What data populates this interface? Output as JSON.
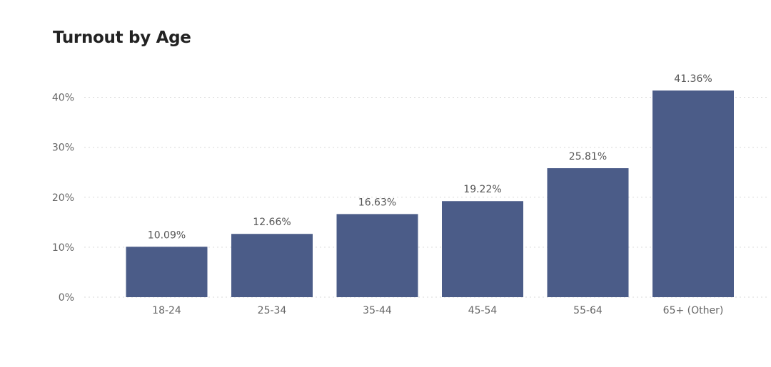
{
  "chart_data": {
    "type": "bar",
    "title": "Turnout by Age",
    "categories": [
      "18-24",
      "25-34",
      "35-44",
      "45-54",
      "55-64",
      "65+ (Other)"
    ],
    "values": [
      10.09,
      12.66,
      16.63,
      19.22,
      25.81,
      41.36
    ],
    "data_labels": [
      "10.09%",
      "12.66%",
      "16.63%",
      "19.22%",
      "25.81%",
      "41.36%"
    ],
    "yticks": [
      0,
      10,
      20,
      30,
      40
    ],
    "ytick_labels": [
      "0%",
      "10%",
      "20%",
      "30%",
      "40%"
    ],
    "ylim": [
      0,
      41.36
    ],
    "xlabel": "",
    "ylabel": "",
    "grid": true,
    "bar_color": "#4b5c88",
    "grid_color": "#d9d9d9"
  }
}
